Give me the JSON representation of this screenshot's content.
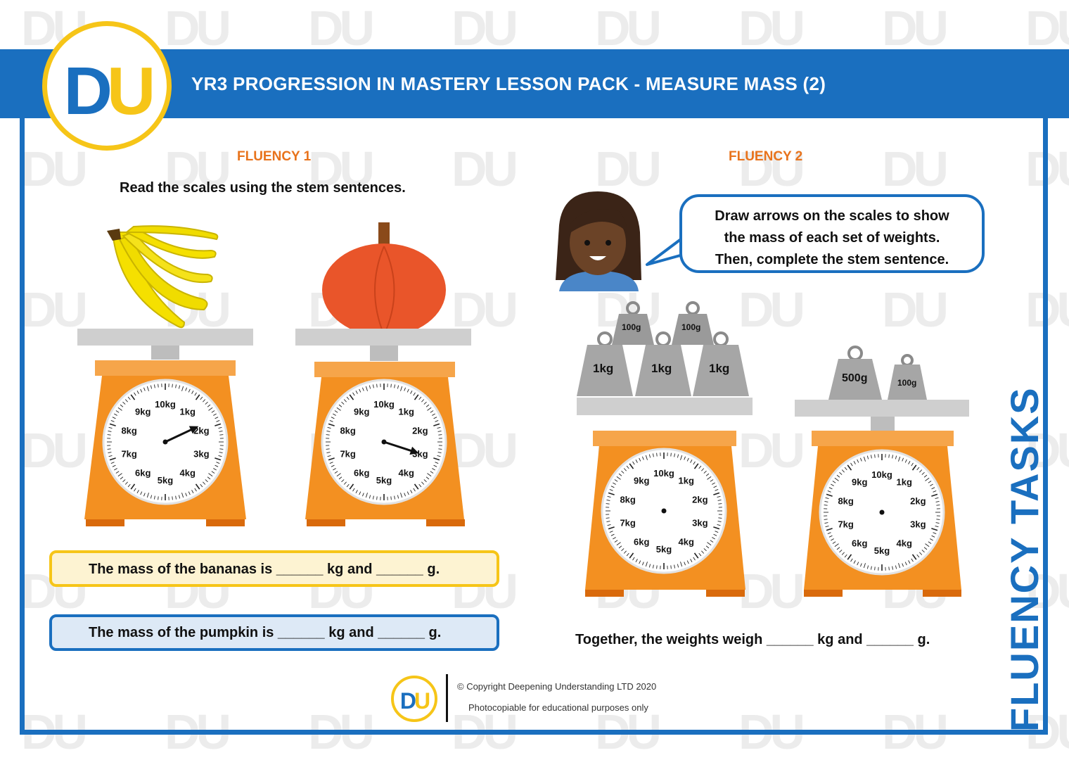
{
  "header": {
    "title": "YR3 PROGRESSION IN MASTERY LESSON PACK - MEASURE MASS (2)"
  },
  "logo": {
    "d": "D",
    "u": "U"
  },
  "fluency1": {
    "title": "FLUENCY 1",
    "instruction": "Read the scales using the stem sentences.",
    "dial_labels": [
      "10kg",
      "1kg",
      "2kg",
      "3kg",
      "4kg",
      "5kg",
      "6kg",
      "7kg",
      "8kg",
      "9kg"
    ],
    "scale_a": {
      "item": "bananas",
      "reading_kg": 1.8
    },
    "scale_b": {
      "item": "pumpkin",
      "reading_kg": 3.0
    },
    "stem_bananas": "The mass of the bananas is ______ kg and ______ g.",
    "stem_pumpkin": "The mass of the pumpkin is ______ kg and ______ g."
  },
  "fluency2": {
    "title": "FLUENCY 2",
    "bubble": [
      "Draw arrows on the scales to show",
      "the mass of each set of weights.",
      "Then, complete the stem sentence."
    ],
    "weights_a": {
      "small": [
        "100g",
        "100g"
      ],
      "large": [
        "1kg",
        "1kg",
        "1kg"
      ]
    },
    "weights_b": {
      "large": "500g",
      "small": "100g"
    },
    "dial_labels": [
      "10kg",
      "1kg",
      "2kg",
      "3kg",
      "4kg",
      "5kg",
      "6kg",
      "7kg",
      "8kg",
      "9kg"
    ],
    "together": "Together, the weights weigh ______ kg and ______ g."
  },
  "side_title": "FLUENCY TASKS",
  "footer": {
    "copyright": "© Copyright Deepening Understanding LTD 2020",
    "note": "Photocopiable for educational purposes only"
  },
  "colors": {
    "blue": "#1a6fbf",
    "orange": "#e8731c",
    "yellow": "#f6c518",
    "scale": "#f39021"
  }
}
